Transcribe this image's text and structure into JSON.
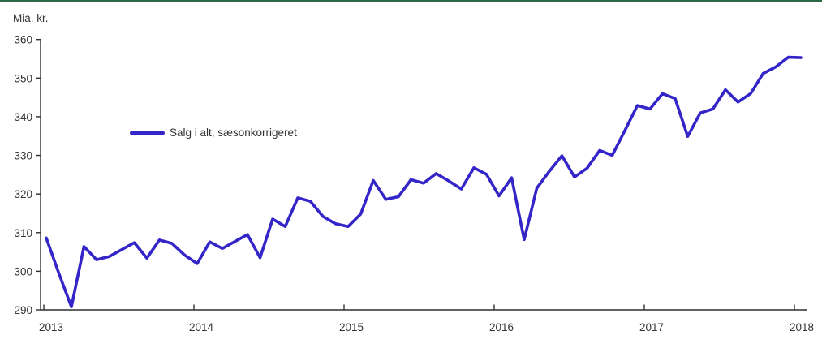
{
  "page": {
    "background": "#ffffff",
    "top_border_color": "#2c6a45"
  },
  "chart_data": {
    "type": "line",
    "title": "",
    "unit_label": "Mia. kr.",
    "xlabel": "",
    "ylabel": "Mia. kr.",
    "grid": false,
    "legend_position": "inside-upper-left",
    "ylim": [
      290,
      360
    ],
    "y_ticks": [
      290,
      300,
      310,
      320,
      330,
      340,
      350,
      360
    ],
    "x_tick_labels": [
      "2013",
      "2014",
      "2015",
      "2016",
      "2017",
      "2018"
    ],
    "x_start": "2013-01",
    "x_end": "2018-01",
    "frequency": "monthly",
    "axis_color": "#2f2f2f",
    "series": [
      {
        "name": "Salg i alt, sæsonkorrigeret",
        "color": "#3425c8",
        "values": [
          308.6,
          299.5,
          290.8,
          306.4,
          303.0,
          303.8,
          305.6,
          307.4,
          303.4,
          308.1,
          307.2,
          304.2,
          302.0,
          307.6,
          305.9,
          307.7,
          309.5,
          303.5,
          313.5,
          311.6,
          319.0,
          318.1,
          314.2,
          312.3,
          311.6,
          314.8,
          323.5,
          318.6,
          319.3,
          323.7,
          322.8,
          325.3,
          323.4,
          321.3,
          326.8,
          325.1,
          319.5,
          324.2,
          308.2,
          321.5,
          325.9,
          329.9,
          324.4,
          326.7,
          331.3,
          330.0,
          336.4,
          342.9,
          342.0,
          346.0,
          344.7,
          334.9,
          341.0,
          342.0,
          347.0,
          343.8,
          346.0,
          351.2,
          352.9,
          355.4,
          355.3
        ]
      }
    ]
  }
}
